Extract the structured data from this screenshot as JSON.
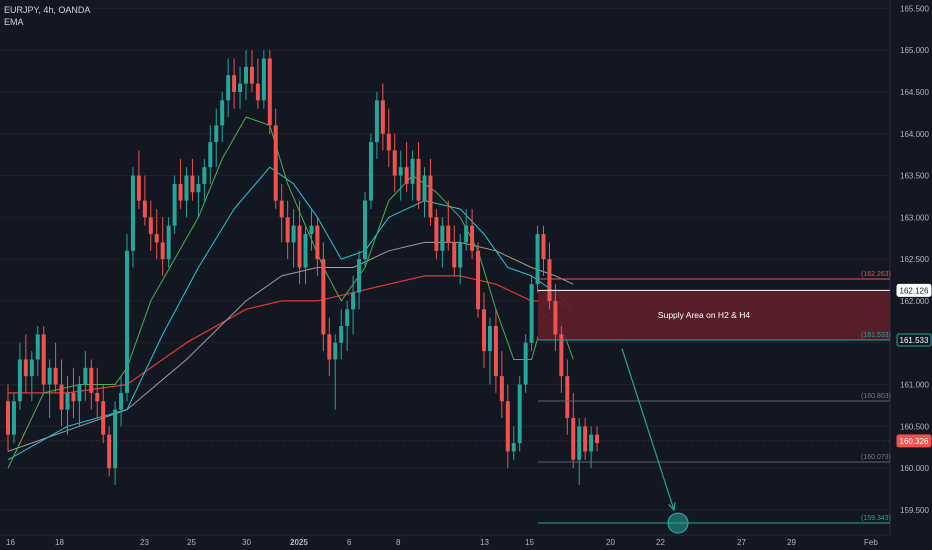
{
  "header": {
    "title": "EURJPY, 4h, OANDA",
    "indicator": "EMA"
  },
  "colors": {
    "background": "#131722",
    "up": "#26a69a",
    "down": "#ef5350",
    "ema_fast": "#4caf50",
    "ema_mid": "#26c6da",
    "ema_slow": "#9e9e9e",
    "ema_long": "#e53935",
    "zone_fill": "#5b1f2a",
    "arrow": "#26a69a"
  },
  "chart_data": {
    "type": "candlestick",
    "symbol": "EURJPY",
    "timeframe": "4h",
    "source": "OANDA",
    "ylim": [
      159.2,
      165.6
    ],
    "y_ticks": [
      159.5,
      160.0,
      160.5,
      161.0,
      161.5,
      162.0,
      162.5,
      163.0,
      163.5,
      164.0,
      164.5,
      165.0,
      165.5
    ],
    "x_ticks": [
      "16",
      "18",
      "23",
      "25",
      "30",
      "2025",
      "6",
      "8",
      "13",
      "15",
      "20",
      "22",
      "27",
      "29",
      "Feb"
    ],
    "candles": [
      [
        160.8,
        161.0,
        160.2,
        160.4
      ],
      [
        160.4,
        160.9,
        160.3,
        160.8
      ],
      [
        160.8,
        161.5,
        160.7,
        161.3
      ],
      [
        161.3,
        161.6,
        160.9,
        161.1
      ],
      [
        161.1,
        161.4,
        160.8,
        161.3
      ],
      [
        161.3,
        161.7,
        161.1,
        161.6
      ],
      [
        161.6,
        161.7,
        160.9,
        161.0
      ],
      [
        161.0,
        161.3,
        160.6,
        161.2
      ],
      [
        161.2,
        161.5,
        160.9,
        161.0
      ],
      [
        161.0,
        161.3,
        160.5,
        160.7
      ],
      [
        160.7,
        161.1,
        160.4,
        160.9
      ],
      [
        160.9,
        161.2,
        160.6,
        160.8
      ],
      [
        160.8,
        161.1,
        160.5,
        161.0
      ],
      [
        161.0,
        161.4,
        160.8,
        161.2
      ],
      [
        161.2,
        161.3,
        160.7,
        160.9
      ],
      [
        160.9,
        161.2,
        160.6,
        160.8
      ],
      [
        160.8,
        161.0,
        160.3,
        160.4
      ],
      [
        160.4,
        160.5,
        159.9,
        160.0
      ],
      [
        160.0,
        160.8,
        159.8,
        160.7
      ],
      [
        160.7,
        161.1,
        160.5,
        160.9
      ],
      [
        160.9,
        162.8,
        160.8,
        162.6
      ],
      [
        162.6,
        163.6,
        162.4,
        163.5
      ],
      [
        163.5,
        163.8,
        163.1,
        163.2
      ],
      [
        163.2,
        163.5,
        162.9,
        163.0
      ],
      [
        163.0,
        163.2,
        162.6,
        162.8
      ],
      [
        162.8,
        163.1,
        162.5,
        162.7
      ],
      [
        162.7,
        163.0,
        162.3,
        162.5
      ],
      [
        162.5,
        163.0,
        162.4,
        162.9
      ],
      [
        162.9,
        163.5,
        162.8,
        163.4
      ],
      [
        163.4,
        163.7,
        163.1,
        163.2
      ],
      [
        163.2,
        163.6,
        163.0,
        163.5
      ],
      [
        163.5,
        163.7,
        163.2,
        163.3
      ],
      [
        163.3,
        163.5,
        163.0,
        163.4
      ],
      [
        163.4,
        163.7,
        163.2,
        163.6
      ],
      [
        163.6,
        164.1,
        163.4,
        163.9
      ],
      [
        163.9,
        164.3,
        163.6,
        164.1
      ],
      [
        164.1,
        164.5,
        163.9,
        164.4
      ],
      [
        164.4,
        164.9,
        164.2,
        164.7
      ],
      [
        164.7,
        164.9,
        164.3,
        164.5
      ],
      [
        164.5,
        164.8,
        164.3,
        164.6
      ],
      [
        164.6,
        165.0,
        164.4,
        164.8
      ],
      [
        164.8,
        165.0,
        164.5,
        164.6
      ],
      [
        164.6,
        164.9,
        164.3,
        164.4
      ],
      [
        164.4,
        165.0,
        164.3,
        164.9
      ],
      [
        164.9,
        165.0,
        164.0,
        164.1
      ],
      [
        164.1,
        164.3,
        163.1,
        163.2
      ],
      [
        163.2,
        163.4,
        162.7,
        163.0
      ],
      [
        163.0,
        163.2,
        162.5,
        162.7
      ],
      [
        162.7,
        163.1,
        162.4,
        162.9
      ],
      [
        162.9,
        163.2,
        162.2,
        162.4
      ],
      [
        162.4,
        162.9,
        162.2,
        162.8
      ],
      [
        162.8,
        163.1,
        162.6,
        162.9
      ],
      [
        162.9,
        163.0,
        162.3,
        162.5
      ],
      [
        162.5,
        162.7,
        161.4,
        161.6
      ],
      [
        161.6,
        161.8,
        161.1,
        161.3
      ],
      [
        161.3,
        161.6,
        160.7,
        161.5
      ],
      [
        161.5,
        161.9,
        161.3,
        161.7
      ],
      [
        161.7,
        162.0,
        161.4,
        161.9
      ],
      [
        161.9,
        162.3,
        161.6,
        162.1
      ],
      [
        162.1,
        162.6,
        161.9,
        162.5
      ],
      [
        162.5,
        163.3,
        162.4,
        163.2
      ],
      [
        163.2,
        164.0,
        163.1,
        163.9
      ],
      [
        163.9,
        164.5,
        163.7,
        164.4
      ],
      [
        164.4,
        164.6,
        163.8,
        164.0
      ],
      [
        164.0,
        164.3,
        163.6,
        163.8
      ],
      [
        163.8,
        164.0,
        163.3,
        163.5
      ],
      [
        163.5,
        163.8,
        163.2,
        163.6
      ],
      [
        163.6,
        163.9,
        163.3,
        163.4
      ],
      [
        163.4,
        163.8,
        163.2,
        163.7
      ],
      [
        163.7,
        163.9,
        163.1,
        163.2
      ],
      [
        163.2,
        163.6,
        163.0,
        163.5
      ],
      [
        163.5,
        163.7,
        162.9,
        163.0
      ],
      [
        163.0,
        163.1,
        162.5,
        162.6
      ],
      [
        162.6,
        163.0,
        162.4,
        162.9
      ],
      [
        162.9,
        163.2,
        162.6,
        162.7
      ],
      [
        162.7,
        162.9,
        162.3,
        162.4
      ],
      [
        162.4,
        162.8,
        162.2,
        162.7
      ],
      [
        162.7,
        163.1,
        162.6,
        162.9
      ],
      [
        162.9,
        163.1,
        162.5,
        162.6
      ],
      [
        162.6,
        162.7,
        161.8,
        161.9
      ],
      [
        161.9,
        162.1,
        161.2,
        161.4
      ],
      [
        161.4,
        161.8,
        161.0,
        161.7
      ],
      [
        161.7,
        161.9,
        160.9,
        161.1
      ],
      [
        161.1,
        161.4,
        160.6,
        160.8
      ],
      [
        160.8,
        161.0,
        160.0,
        160.2
      ],
      [
        160.2,
        160.5,
        160.1,
        160.3
      ],
      [
        160.3,
        161.1,
        160.2,
        161.0
      ],
      [
        161.0,
        161.6,
        160.9,
        161.5
      ],
      [
        161.5,
        162.3,
        161.4,
        162.2
      ],
      [
        162.2,
        162.9,
        162.1,
        162.8
      ],
      [
        162.8,
        162.9,
        162.3,
        162.5
      ],
      [
        162.5,
        162.7,
        161.9,
        162.0
      ],
      [
        162.0,
        162.2,
        161.4,
        161.6
      ],
      [
        161.6,
        161.7,
        160.9,
        161.1
      ],
      [
        161.1,
        161.3,
        160.4,
        160.6
      ],
      [
        160.6,
        160.9,
        160.0,
        160.1
      ],
      [
        160.1,
        160.6,
        159.8,
        160.5
      ],
      [
        160.5,
        160.6,
        160.1,
        160.2
      ],
      [
        160.2,
        160.5,
        160.0,
        160.4
      ],
      [
        160.4,
        160.5,
        160.2,
        160.3
      ]
    ],
    "ema_fast": [
      [
        0,
        160.0
      ],
      [
        6,
        160.9
      ],
      [
        12,
        161.0
      ],
      [
        18,
        161.0
      ],
      [
        20,
        161.2
      ],
      [
        24,
        162.0
      ],
      [
        28,
        162.5
      ],
      [
        32,
        163.0
      ],
      [
        36,
        163.7
      ],
      [
        40,
        164.2
      ],
      [
        44,
        164.1
      ],
      [
        47,
        163.4
      ],
      [
        50,
        162.9
      ],
      [
        53,
        162.4
      ],
      [
        56,
        162.0
      ],
      [
        60,
        162.4
      ],
      [
        64,
        163.2
      ],
      [
        68,
        163.5
      ],
      [
        72,
        163.3
      ],
      [
        76,
        163.0
      ],
      [
        79,
        162.6
      ],
      [
        82,
        161.9
      ],
      [
        85,
        161.3
      ],
      [
        88,
        161.3
      ],
      [
        90,
        161.8
      ],
      [
        92,
        161.9
      ],
      [
        95,
        161.3
      ]
    ],
    "ema_mid": [
      [
        0,
        160.1
      ],
      [
        10,
        160.5
      ],
      [
        20,
        160.7
      ],
      [
        26,
        161.6
      ],
      [
        32,
        162.4
      ],
      [
        38,
        163.1
      ],
      [
        44,
        163.6
      ],
      [
        48,
        163.4
      ],
      [
        52,
        163.0
      ],
      [
        56,
        162.5
      ],
      [
        60,
        162.6
      ],
      [
        64,
        163.0
      ],
      [
        70,
        163.2
      ],
      [
        76,
        163.1
      ],
      [
        80,
        162.8
      ],
      [
        84,
        162.4
      ],
      [
        88,
        162.3
      ],
      [
        92,
        162.1
      ],
      [
        95,
        161.9
      ]
    ],
    "ema_slow": [
      [
        0,
        160.2
      ],
      [
        12,
        160.5
      ],
      [
        20,
        160.7
      ],
      [
        30,
        161.3
      ],
      [
        40,
        162.0
      ],
      [
        46,
        162.3
      ],
      [
        52,
        162.4
      ],
      [
        58,
        162.4
      ],
      [
        64,
        162.6
      ],
      [
        70,
        162.7
      ],
      [
        76,
        162.7
      ],
      [
        82,
        162.6
      ],
      [
        88,
        162.4
      ],
      [
        92,
        162.3
      ],
      [
        95,
        162.2
      ]
    ],
    "ema_long": [
      [
        0,
        160.9
      ],
      [
        10,
        160.9
      ],
      [
        20,
        161.0
      ],
      [
        30,
        161.5
      ],
      [
        40,
        161.9
      ],
      [
        46,
        162.0
      ],
      [
        52,
        162.0
      ],
      [
        58,
        162.1
      ],
      [
        64,
        162.2
      ],
      [
        70,
        162.3
      ],
      [
        76,
        162.3
      ],
      [
        82,
        162.2
      ],
      [
        88,
        162.0
      ],
      [
        92,
        162.0
      ],
      [
        95,
        161.9
      ]
    ],
    "zone": {
      "label": "Supply Area on H2 & H4",
      "top": 162.126,
      "bottom": 161.533
    },
    "levels": [
      {
        "price": 162.263,
        "label": "(162.263)",
        "kind": "zone-top"
      },
      {
        "price": 162.126,
        "label": "162.126",
        "kind": "zone-upper"
      },
      {
        "price": 161.533,
        "label": "(161.533)",
        "kind": "zone-bottom"
      },
      {
        "price": 160.803,
        "label": "(160.803)",
        "kind": "level"
      },
      {
        "price": 160.073,
        "label": "(160.073)",
        "kind": "level"
      },
      {
        "price": 159.343,
        "label": "(159.343)",
        "kind": "target"
      }
    ],
    "axis_badges": [
      {
        "price": 162.126,
        "label": "162.126",
        "style": "white"
      },
      {
        "price": 161.533,
        "label": "161.533",
        "style": "outline"
      },
      {
        "price": 160.326,
        "label": "160.326",
        "style": "red"
      }
    ],
    "current_price": 160.326,
    "arrow": {
      "from_price": 161.5,
      "to_price": 159.343
    }
  }
}
